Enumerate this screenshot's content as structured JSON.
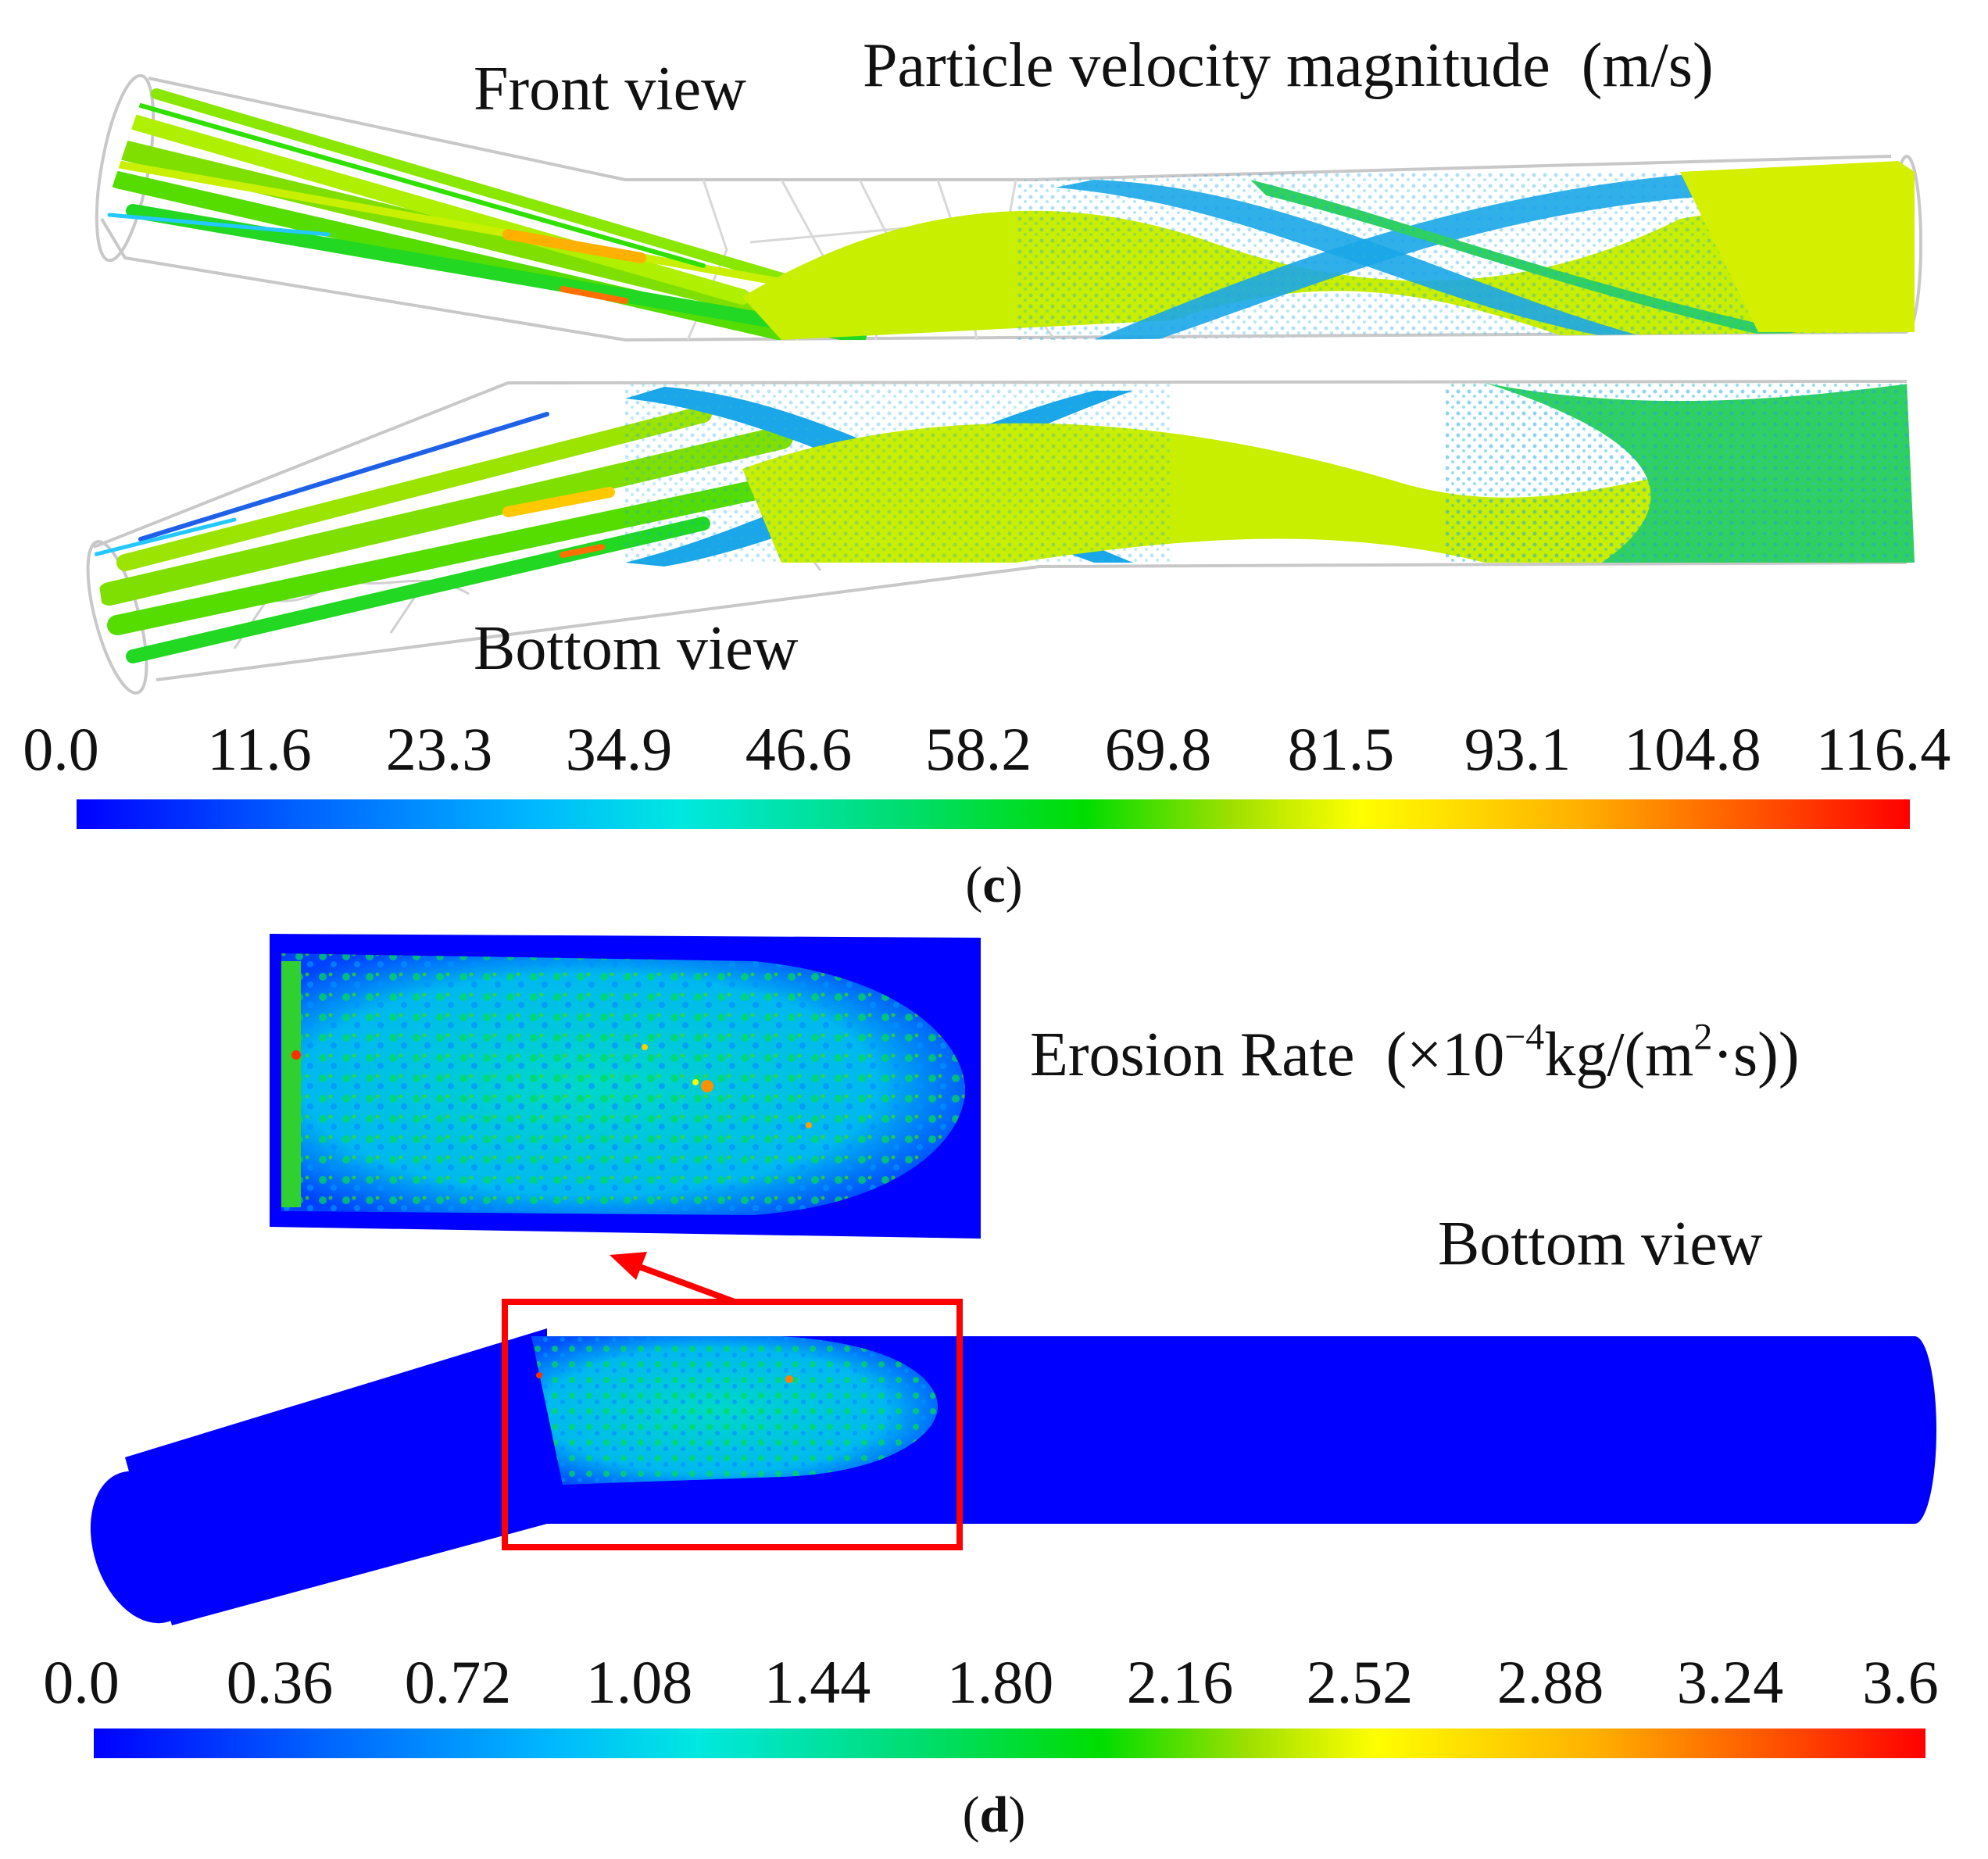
{
  "panel_c": {
    "title": "Particle velocity magnitude  (m/s)",
    "front_label": "Front view",
    "bottom_label": "Bottom view",
    "scale": [
      "0.0",
      "11.6",
      "23.3",
      "34.9",
      "46.6",
      "58.2",
      "69.8",
      "81.5",
      "93.1",
      "104.8",
      "116.4"
    ],
    "letter": "c"
  },
  "panel_d": {
    "title_prefix": "Erosion Rate  (×10",
    "title_exp1": "−4",
    "title_mid": "kg/(m",
    "title_exp2": "2",
    "title_suffix": "·s))",
    "bottom_label": "Bottom view",
    "scale": [
      "0.0",
      "0.36",
      "0.72",
      "1.08",
      "1.44",
      "1.80",
      "2.16",
      "2.52",
      "2.88",
      "3.24",
      "3.6"
    ],
    "letter": "d"
  },
  "colors": {
    "pipe_blue": "#0000ff",
    "highlight": "#ff0000",
    "wire": "#c8c8c8"
  }
}
